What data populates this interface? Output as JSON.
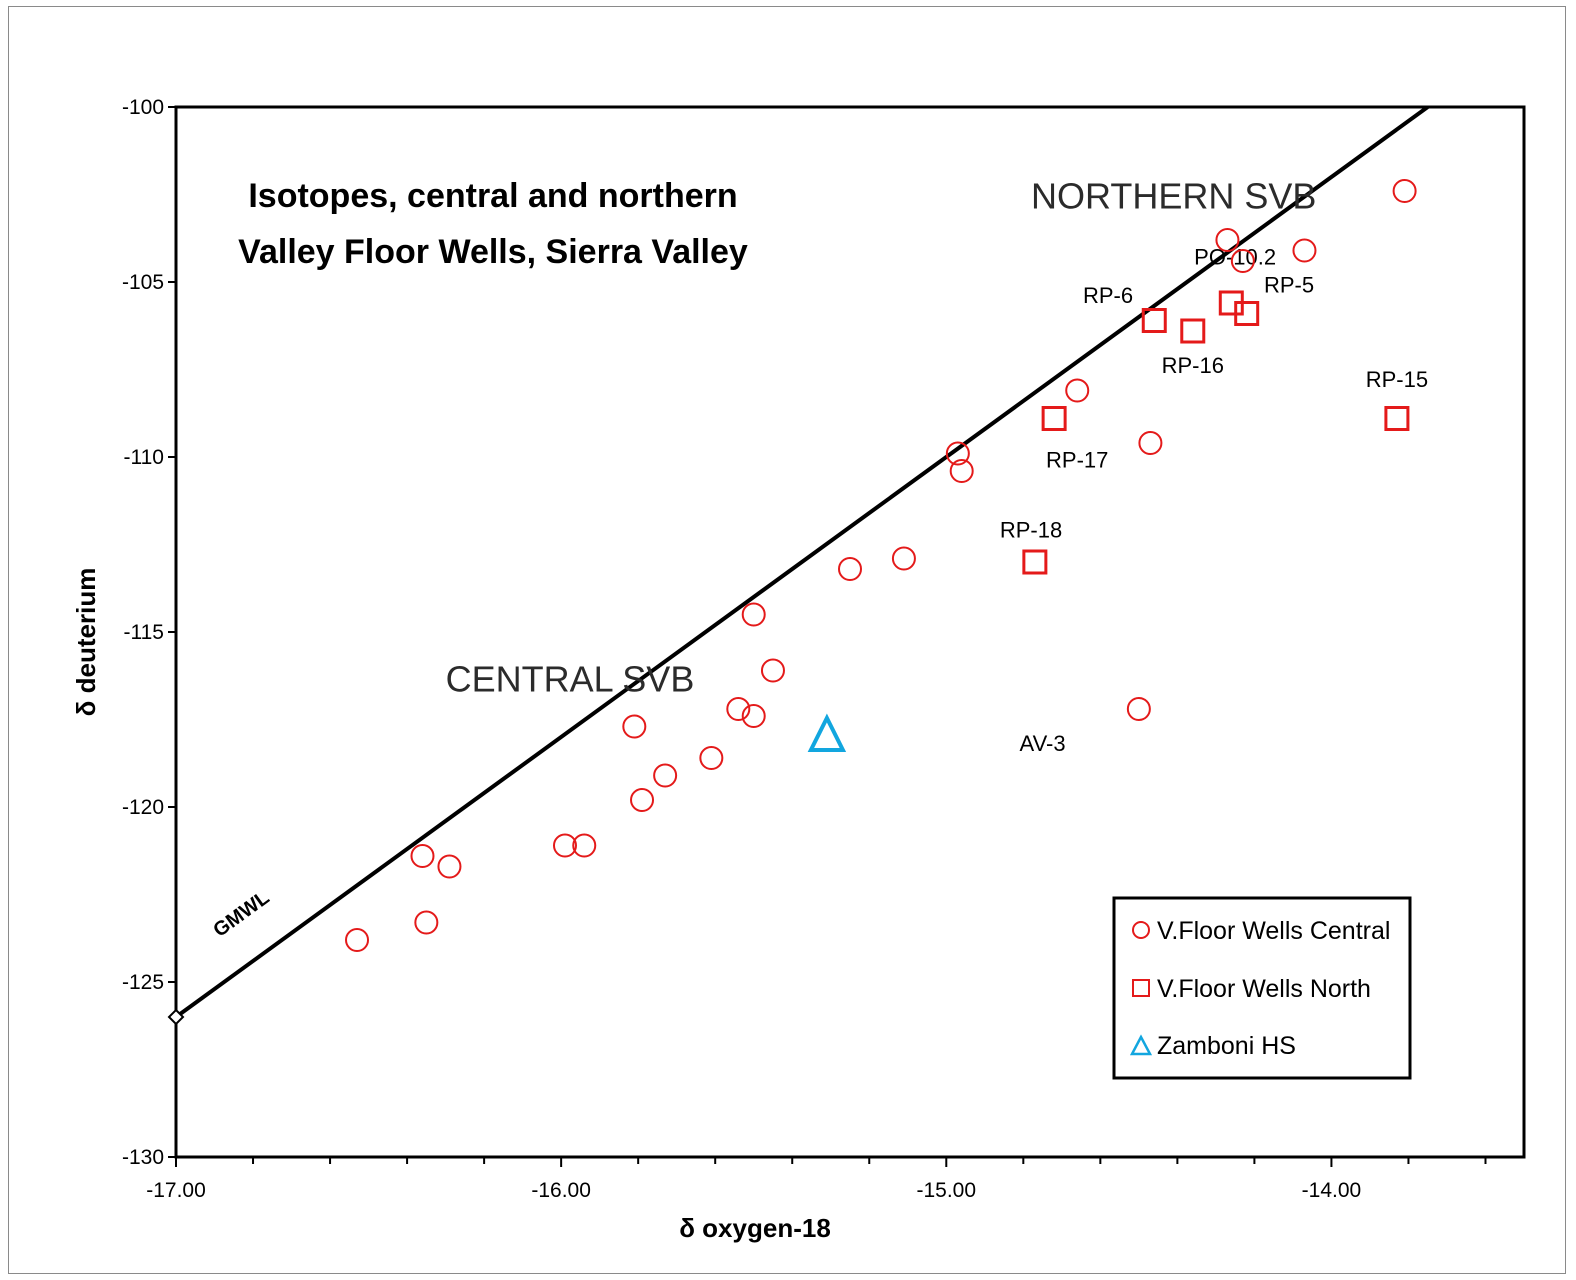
{
  "chart_data": {
    "type": "scatter",
    "title_lines": [
      "Isotopes, central and northern",
      "Valley Floor Wells, Sierra Valley"
    ],
    "xlabel": "δ  oxygen-18",
    "ylabel": "δ  deuterium",
    "xlim": [
      -17.0,
      -13.5
    ],
    "ylim": [
      -130,
      -100
    ],
    "x_ticks": [
      -17.0,
      -16.0,
      -15.0,
      -14.0
    ],
    "x_tick_labels": [
      "-17.00",
      "-16.00",
      "-15.00",
      "-14.00"
    ],
    "y_ticks": [
      -100,
      -105,
      -110,
      -115,
      -120,
      -125,
      -130
    ],
    "y_tick_labels": [
      "-100",
      "-105",
      "-110",
      "-115",
      "-120",
      "-125",
      "-130"
    ],
    "grid": false,
    "legend_placement": "bottom-right",
    "series": [
      {
        "name": "V.Floor Wells Central",
        "marker": "circle",
        "color": "#e41a1a",
        "points": [
          [
            -16.53,
            -123.8
          ],
          [
            -16.36,
            -121.4
          ],
          [
            -16.35,
            -123.3
          ],
          [
            -16.29,
            -121.7
          ],
          [
            -15.99,
            -121.1
          ],
          [
            -15.94,
            -121.1
          ],
          [
            -15.81,
            -117.7
          ],
          [
            -15.79,
            -119.8
          ],
          [
            -15.73,
            -119.1
          ],
          [
            -15.61,
            -118.6
          ],
          [
            -15.54,
            -117.2
          ],
          [
            -15.5,
            -117.4
          ],
          [
            -15.5,
            -114.5
          ],
          [
            -15.45,
            -116.1
          ],
          [
            -15.25,
            -113.2
          ],
          [
            -15.11,
            -112.9
          ],
          [
            -14.97,
            -109.9
          ],
          [
            -14.96,
            -110.4
          ],
          [
            -14.66,
            -108.1
          ],
          [
            -14.5,
            -117.2
          ],
          [
            -14.47,
            -109.6
          ],
          [
            -14.27,
            -103.8
          ],
          [
            -14.23,
            -104.4
          ],
          [
            -14.07,
            -104.1
          ],
          [
            -13.81,
            -102.4
          ]
        ]
      },
      {
        "name": "V.Floor Wells North",
        "marker": "square",
        "color": "#e41a1a",
        "points": [
          [
            -14.77,
            -113.0
          ],
          [
            -14.72,
            -108.9
          ],
          [
            -14.46,
            -106.1
          ],
          [
            -14.36,
            -106.4
          ],
          [
            -14.26,
            -105.6
          ],
          [
            -14.22,
            -105.9
          ],
          [
            -13.83,
            -108.9
          ]
        ]
      },
      {
        "name": "Zamboni HS",
        "marker": "triangle",
        "color": "#12a6df",
        "points": [
          [
            -15.31,
            -118.0
          ]
        ]
      }
    ],
    "gmwl": {
      "label": "GMWL",
      "points": [
        [
          -17.0,
          -126.0
        ],
        [
          -13.75,
          -100.0
        ]
      ]
    },
    "region_labels": [
      {
        "text": "NORTHERN SVB",
        "x": -14.78,
        "y": -102.9
      },
      {
        "text": "CENTRAL SVB",
        "x": -16.3,
        "y": -116.7
      }
    ],
    "point_labels": [
      {
        "text": "PO-10.2",
        "x": -14.25,
        "y": -104.5
      },
      {
        "text": "RP-5",
        "x": -14.11,
        "y": -105.3
      },
      {
        "text": "RP-6",
        "x": -14.58,
        "y": -105.6
      },
      {
        "text": "RP-16",
        "x": -14.36,
        "y": -107.6
      },
      {
        "text": "RP-15",
        "x": -13.83,
        "y": -108.0
      },
      {
        "text": "RP-17",
        "x": -14.66,
        "y": -110.3
      },
      {
        "text": "RP-18",
        "x": -14.78,
        "y": -112.3
      },
      {
        "text": "AV-3",
        "x": -14.75,
        "y": -118.4
      }
    ]
  }
}
